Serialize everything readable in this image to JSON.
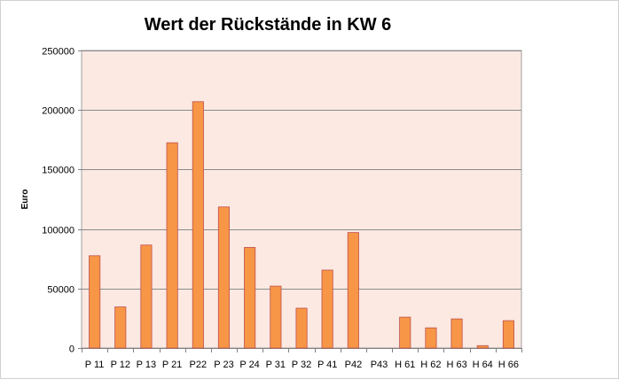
{
  "chart_data": {
    "type": "bar",
    "title": "Wert der Rückstände in KW 6",
    "xlabel": "",
    "ylabel": "Euro",
    "ylim": [
      0,
      250000
    ],
    "yticks": [
      0,
      50000,
      100000,
      150000,
      200000,
      250000
    ],
    "grid": true,
    "legend": "none",
    "categories": [
      "P 11",
      "P 12",
      "P 13",
      "P 21",
      "P22",
      "P 23",
      "P 24",
      "P 31",
      "P 32",
      "P 41",
      "P42",
      "P43",
      "H 61",
      "H 62",
      "H 63",
      "H 64",
      "H 66"
    ],
    "values": [
      77500,
      34500,
      86500,
      172500,
      207000,
      118500,
      84500,
      52000,
      33500,
      65500,
      97000,
      0,
      26000,
      17000,
      24500,
      2000,
      23000
    ],
    "colors": {
      "bar_fill": "#f79646",
      "bar_stroke": "#c0504d",
      "plot_background": "#fbe9e2",
      "gridline": "#8c8c8c"
    }
  }
}
